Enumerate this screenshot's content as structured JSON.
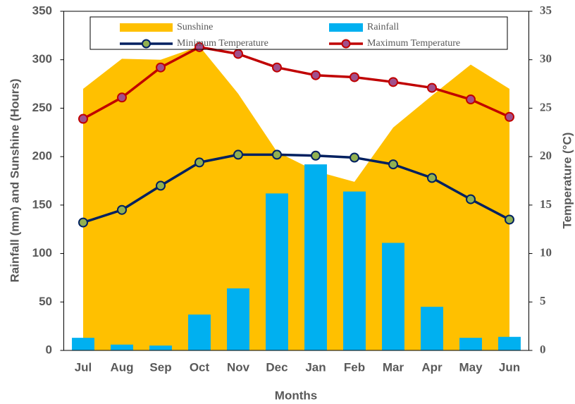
{
  "chart_data": {
    "type": "combo",
    "x_label": "Months",
    "y_label": "Rainfall (mm) and Sunshine (Hours)",
    "y2_label": "Temperature (°C)",
    "categories": [
      "Jul",
      "Aug",
      "Sep",
      "Oct",
      "Nov",
      "Dec",
      "Jan",
      "Feb",
      "Mar",
      "Apr",
      "May",
      "Jun"
    ],
    "series": [
      {
        "name": "Sunshine",
        "type": "area",
        "color": "#FFC000",
        "values": [
          270,
          301,
          300,
          314,
          265,
          205,
          185,
          174,
          230,
          263,
          295,
          270
        ]
      },
      {
        "name": "Rainfall",
        "type": "bar",
        "color": "#00B0F0",
        "values": [
          13,
          6,
          5,
          37,
          64,
          162,
          192,
          164,
          111,
          45,
          13,
          14
        ]
      },
      {
        "name": "Minimum Temperature",
        "type": "line",
        "axis": "y2",
        "color": "#002060",
        "marker_color": "#92B050",
        "values": [
          13.2,
          14.5,
          17.0,
          19.4,
          20.2,
          20.2,
          20.1,
          19.9,
          19.2,
          17.8,
          15.6,
          13.5
        ]
      },
      {
        "name": "Maximum Temperature",
        "type": "line",
        "axis": "y2",
        "color": "#C00000",
        "marker_color": "#A0508C",
        "values": [
          23.9,
          26.1,
          29.2,
          31.3,
          30.6,
          29.2,
          28.4,
          28.2,
          27.7,
          27.1,
          25.9,
          24.1
        ]
      }
    ],
    "ylim": [
      0,
      350
    ],
    "yticks": [
      0,
      50,
      100,
      150,
      200,
      250,
      300,
      350
    ],
    "y2lim": [
      0,
      35
    ],
    "y2ticks": [
      0,
      5,
      10,
      15,
      20,
      25,
      30,
      35
    ],
    "grid": false
  }
}
